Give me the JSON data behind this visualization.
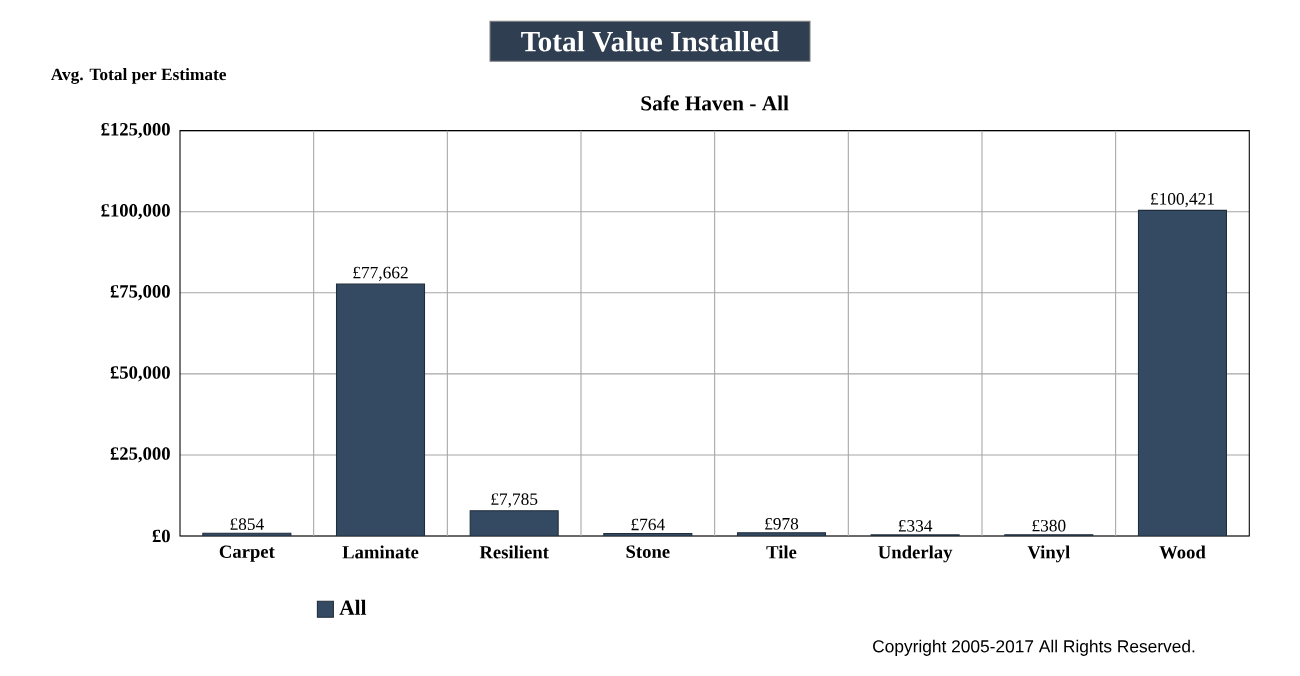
{
  "chart_data": {
    "type": "bar",
    "title": "Total Value Installed",
    "subtitle": "Safe Haven - All",
    "ylabel": "Avg. Total per Estimate",
    "categories": [
      "Carpet",
      "Laminate",
      "Resilient",
      "Stone",
      "Tile",
      "Underlay",
      "Vinyl",
      "Wood"
    ],
    "series": [
      {
        "name": "All",
        "color": "#344a62",
        "values": [
          854,
          77662,
          7785,
          764,
          978,
          334,
          380,
          100421
        ],
        "value_labels": [
          "£854",
          "£77,662",
          "£7,785",
          "£764",
          "£978",
          "£334",
          "£380",
          "£100,421"
        ]
      }
    ],
    "ylim": [
      0,
      125000
    ],
    "yticks": [
      {
        "value": 0,
        "label": "£0"
      },
      {
        "value": 25000,
        "label": "£25,000"
      },
      {
        "value": 50000,
        "label": "£50,000"
      },
      {
        "value": 75000,
        "label": "£75,000"
      },
      {
        "value": 100000,
        "label": "£100,000"
      },
      {
        "value": 125000,
        "label": "£125,000"
      }
    ],
    "grid": true,
    "legend": "bottom left",
    "annotations": [
      "Copyright 2005-2017 All Rights Reserved."
    ]
  }
}
